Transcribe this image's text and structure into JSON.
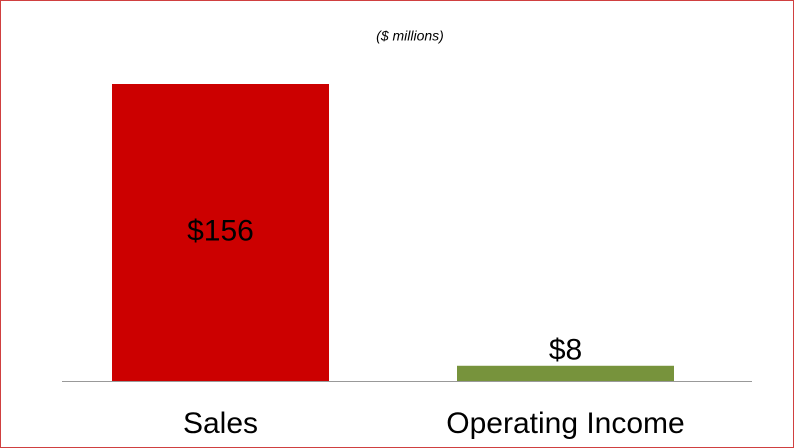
{
  "chart_data": {
    "type": "bar",
    "subtitle": "($ millions)",
    "categories": [
      "Sales",
      "Operating Income"
    ],
    "values": [
      156,
      8
    ],
    "value_labels": [
      "$156",
      "$8"
    ],
    "colors": [
      "#cc0000",
      "#77933c"
    ]
  }
}
